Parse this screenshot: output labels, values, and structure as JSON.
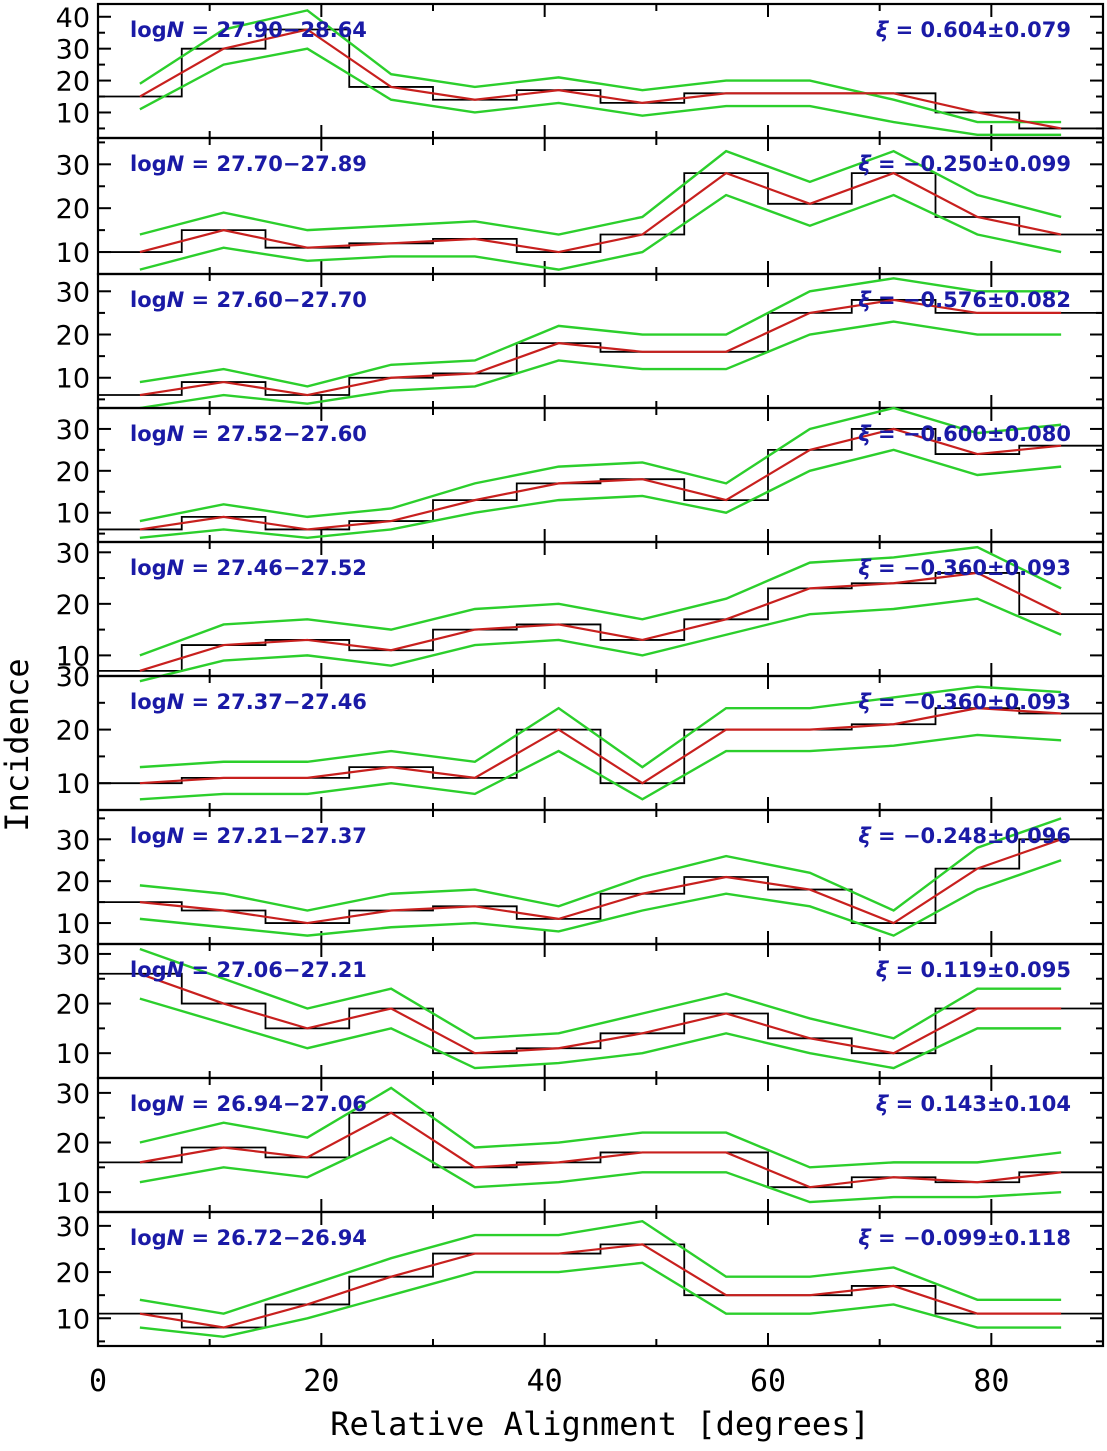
{
  "chart_data": {
    "type": "line",
    "xlabel": "Relative Alignment [degrees]",
    "ylabel": "Incidence",
    "xlim": [
      0,
      90
    ],
    "xticks": [
      0,
      20,
      40,
      60,
      80
    ],
    "bin_centers": [
      3.75,
      11.25,
      18.75,
      26.25,
      33.75,
      41.25,
      48.75,
      56.25,
      63.75,
      71.25,
      78.75,
      86.25
    ],
    "colors": {
      "histogram": "#000000",
      "model": "#c8201e",
      "confidence_band": "#2ccf2c",
      "annotation": "#1a1aa6"
    },
    "panels": [
      {
        "label_prefix": "log",
        "label_var": "N",
        "range": " = 27.90−28.64",
        "xi_text": " = 0.604±0.079",
        "ylim": [
          2,
          44
        ],
        "yticks": [
          10,
          20,
          30,
          40
        ],
        "histogram": [
          15,
          30,
          36,
          18,
          14,
          17,
          13,
          16,
          16,
          16,
          10,
          5
        ],
        "model": [
          15,
          30,
          36,
          18,
          14,
          17,
          13,
          16,
          16,
          16,
          10,
          5
        ],
        "band_upper": [
          19,
          36,
          42,
          22,
          18,
          21,
          17,
          20,
          20,
          14,
          7,
          7
        ],
        "band_lower": [
          11,
          25,
          30,
          14,
          10,
          13,
          9,
          12,
          12,
          7,
          3,
          3
        ]
      },
      {
        "label_prefix": "log",
        "label_var": "N",
        "range": " = 27.70−27.89",
        "xi_text": " = −0.250±0.099",
        "ylim": [
          5,
          36
        ],
        "yticks": [
          10,
          20,
          30
        ],
        "histogram": [
          10,
          15,
          11,
          12,
          13,
          10,
          14,
          28,
          21,
          28,
          18,
          14
        ],
        "model": [
          10,
          15,
          11,
          12,
          13,
          10,
          14,
          28,
          21,
          28,
          18,
          14
        ],
        "band_upper": [
          14,
          19,
          15,
          16,
          17,
          14,
          18,
          33,
          26,
          33,
          23,
          18
        ],
        "band_lower": [
          6,
          11,
          8,
          9,
          9,
          6,
          10,
          23,
          16,
          23,
          14,
          10
        ]
      },
      {
        "label_prefix": "log",
        "label_var": "N",
        "range": " = 27.60−27.70",
        "xi_text": " = −0.576±0.082",
        "ylim": [
          3,
          34
        ],
        "yticks": [
          10,
          20,
          30
        ],
        "histogram": [
          6,
          9,
          6,
          10,
          11,
          18,
          16,
          16,
          25,
          28,
          25,
          25
        ],
        "model": [
          6,
          9,
          6,
          10,
          11,
          18,
          16,
          16,
          25,
          28,
          25,
          25
        ],
        "band_upper": [
          9,
          12,
          8,
          13,
          14,
          22,
          20,
          20,
          30,
          33,
          30,
          30
        ],
        "band_lower": [
          3,
          6,
          4,
          7,
          8,
          14,
          12,
          12,
          20,
          23,
          20,
          20
        ]
      },
      {
        "label_prefix": "log",
        "label_var": "N",
        "range": " = 27.52−27.60",
        "xi_text": " = −0.600±0.080",
        "ylim": [
          3,
          35
        ],
        "yticks": [
          10,
          20,
          30
        ],
        "histogram": [
          6,
          9,
          6,
          8,
          13,
          17,
          18,
          13,
          25,
          30,
          24,
          26
        ],
        "model": [
          6,
          9,
          6,
          8,
          13,
          17,
          18,
          13,
          25,
          30,
          24,
          26
        ],
        "band_upper": [
          8,
          12,
          9,
          11,
          17,
          21,
          22,
          17,
          30,
          35,
          29,
          31
        ],
        "band_lower": [
          4,
          6,
          4,
          6,
          10,
          13,
          14,
          10,
          20,
          25,
          19,
          21
        ]
      },
      {
        "label_prefix": "log",
        "label_var": "N",
        "range": " = 27.46−27.52",
        "xi_text": " = −0.360±0.093",
        "ylim": [
          6,
          32
        ],
        "yticks": [
          10,
          20,
          30
        ],
        "histogram": [
          7,
          12,
          13,
          11,
          15,
          16,
          13,
          17,
          23,
          24,
          26,
          18
        ],
        "model": [
          7,
          12,
          13,
          11,
          15,
          16,
          13,
          17,
          23,
          24,
          26,
          18
        ],
        "band_upper": [
          10,
          16,
          17,
          15,
          19,
          20,
          17,
          21,
          28,
          29,
          31,
          23
        ],
        "band_lower": [
          5,
          9,
          10,
          8,
          12,
          13,
          10,
          14,
          18,
          19,
          21,
          14
        ]
      },
      {
        "label_prefix": "log",
        "label_var": "N",
        "range": " = 27.37−27.46",
        "xi_text": " = −0.360±0.093",
        "ylim": [
          5,
          30
        ],
        "yticks": [
          10,
          20,
          30
        ],
        "histogram": [
          10,
          11,
          11,
          13,
          11,
          20,
          10,
          20,
          20,
          21,
          24,
          23
        ],
        "model": [
          10,
          11,
          11,
          13,
          11,
          20,
          10,
          20,
          20,
          21,
          24,
          23
        ],
        "band_upper": [
          13,
          14,
          14,
          16,
          14,
          24,
          13,
          24,
          24,
          26,
          28,
          27
        ],
        "band_lower": [
          7,
          8,
          8,
          10,
          8,
          16,
          7,
          16,
          16,
          17,
          19,
          18
        ]
      },
      {
        "label_prefix": "log",
        "label_var": "N",
        "range": " = 27.21−27.37",
        "xi_text": " = −0.248±0.096",
        "ylim": [
          5,
          37
        ],
        "yticks": [
          10,
          20,
          30
        ],
        "histogram": [
          15,
          13,
          10,
          13,
          14,
          11,
          17,
          21,
          18,
          10,
          23,
          30
        ],
        "model": [
          15,
          13,
          10,
          13,
          14,
          11,
          17,
          21,
          18,
          10,
          23,
          30
        ],
        "band_upper": [
          19,
          17,
          13,
          17,
          18,
          14,
          21,
          26,
          22,
          13,
          28,
          35
        ],
        "band_lower": [
          11,
          9,
          7,
          9,
          10,
          8,
          13,
          17,
          14,
          7,
          18,
          25
        ]
      },
      {
        "label_prefix": "log",
        "label_var": "N",
        "range": " = 27.06−27.21",
        "xi_text": " = 0.119±0.095",
        "ylim": [
          5,
          32
        ],
        "yticks": [
          10,
          20,
          30
        ],
        "histogram": [
          26,
          20,
          15,
          19,
          10,
          11,
          14,
          18,
          13,
          10,
          19,
          19
        ],
        "model": [
          26,
          20,
          15,
          19,
          10,
          11,
          14,
          18,
          13,
          10,
          19,
          19
        ],
        "band_upper": [
          31,
          25,
          19,
          23,
          13,
          14,
          18,
          22,
          17,
          13,
          23,
          23
        ],
        "band_lower": [
          21,
          16,
          11,
          15,
          7,
          8,
          10,
          14,
          10,
          7,
          15,
          15
        ]
      },
      {
        "label_prefix": "log",
        "label_var": "N",
        "range": " = 26.94−27.06",
        "xi_text": " = 0.143±0.104",
        "ylim": [
          6,
          33
        ],
        "yticks": [
          10,
          20,
          30
        ],
        "histogram": [
          16,
          19,
          17,
          26,
          15,
          16,
          18,
          18,
          11,
          13,
          12,
          14
        ],
        "model": [
          16,
          19,
          17,
          26,
          15,
          16,
          18,
          18,
          11,
          13,
          12,
          14
        ],
        "band_upper": [
          20,
          24,
          21,
          31,
          19,
          20,
          22,
          22,
          15,
          16,
          16,
          18
        ],
        "band_lower": [
          12,
          15,
          13,
          21,
          11,
          12,
          14,
          14,
          8,
          9,
          9,
          10
        ]
      },
      {
        "label_prefix": "log",
        "label_var": "N",
        "range": " = 26.72−26.94",
        "xi_text": " = −0.099±0.118",
        "ylim": [
          4,
          33
        ],
        "yticks": [
          10,
          20,
          30
        ],
        "histogram": [
          11,
          8,
          13,
          19,
          24,
          24,
          26,
          15,
          15,
          17,
          11,
          11
        ],
        "model": [
          11,
          8,
          13,
          19,
          24,
          24,
          26,
          15,
          15,
          17,
          11,
          11
        ],
        "band_upper": [
          14,
          11,
          17,
          23,
          28,
          28,
          31,
          19,
          19,
          21,
          14,
          14
        ],
        "band_lower": [
          8,
          6,
          10,
          15,
          20,
          20,
          22,
          11,
          11,
          13,
          8,
          8
        ]
      }
    ]
  }
}
